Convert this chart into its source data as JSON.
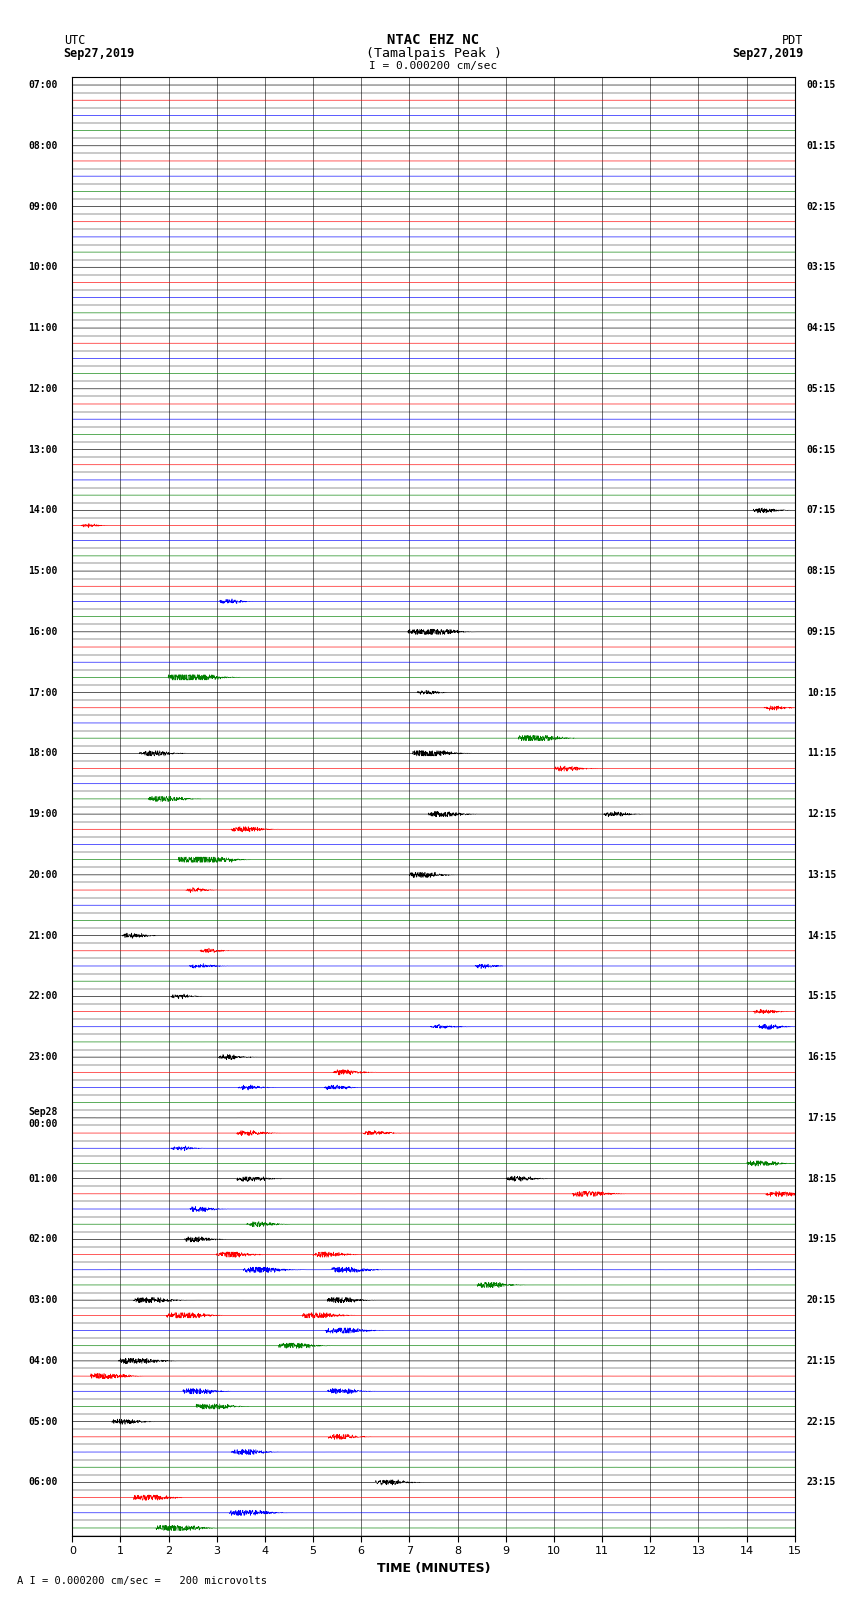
{
  "title_line1": "NTAC EHZ NC",
  "title_line2": "(Tamalpais Peak )",
  "title_scale": "I = 0.000200 cm/sec",
  "left_header1": "UTC",
  "left_header2": "Sep27,2019",
  "right_header1": "PDT",
  "right_header2": "Sep27,2019",
  "bottom_label": "TIME (MINUTES)",
  "bottom_note": "A I = 0.000200 cm/sec =   200 microvolts",
  "utc_labels": [
    "07:00",
    "08:00",
    "09:00",
    "10:00",
    "11:00",
    "12:00",
    "13:00",
    "14:00",
    "15:00",
    "16:00",
    "17:00",
    "18:00",
    "19:00",
    "20:00",
    "21:00",
    "22:00",
    "23:00",
    "Sep28\n00:00",
    "01:00",
    "02:00",
    "03:00",
    "04:00",
    "05:00",
    "06:00"
  ],
  "pdt_labels": [
    "00:15",
    "01:15",
    "02:15",
    "03:15",
    "04:15",
    "05:15",
    "06:15",
    "07:15",
    "08:15",
    "09:15",
    "10:15",
    "11:15",
    "12:15",
    "13:15",
    "14:15",
    "15:15",
    "16:15",
    "17:15",
    "18:15",
    "19:15",
    "20:15",
    "21:15",
    "22:15",
    "23:15"
  ],
  "trace_colors": [
    "black",
    "red",
    "blue",
    "green"
  ],
  "background_color": "white",
  "n_rows": 24,
  "traces_per_row": 4,
  "minutes": 15,
  "figsize": [
    8.5,
    16.13
  ],
  "dpi": 100
}
